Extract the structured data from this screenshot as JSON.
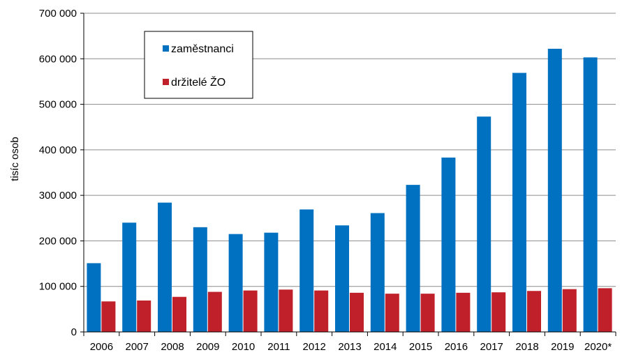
{
  "chart_data": {
    "type": "bar",
    "title": "",
    "xlabel": "",
    "ylabel": "tisíc osob",
    "ylim": [
      0,
      700000
    ],
    "y_ticks": [
      "0",
      "100 000",
      "200 000",
      "300 000",
      "400 000",
      "500 000",
      "600 000",
      "700 000"
    ],
    "y_tick_values": [
      0,
      100000,
      200000,
      300000,
      400000,
      500000,
      600000,
      700000
    ],
    "grid": true,
    "legend_position": "top-left",
    "categories": [
      "2006",
      "2007",
      "2008",
      "2009",
      "2010",
      "2011",
      "2012",
      "2013",
      "2014",
      "2015",
      "2016",
      "2017",
      "2018",
      "2019",
      "2020*"
    ],
    "series": [
      {
        "name": "zaměstnanci",
        "color": "#0070C0",
        "values": [
          151000,
          240000,
          284000,
          230000,
          215000,
          218000,
          269000,
          234000,
          261000,
          323000,
          383000,
          473000,
          569000,
          622000,
          603000
        ]
      },
      {
        "name": "držitelé ŽO",
        "color": "#C0202A",
        "values": [
          67000,
          69000,
          77000,
          88000,
          91000,
          93000,
          91000,
          86000,
          84000,
          84000,
          86000,
          87000,
          90000,
          94000,
          96000
        ]
      }
    ]
  }
}
